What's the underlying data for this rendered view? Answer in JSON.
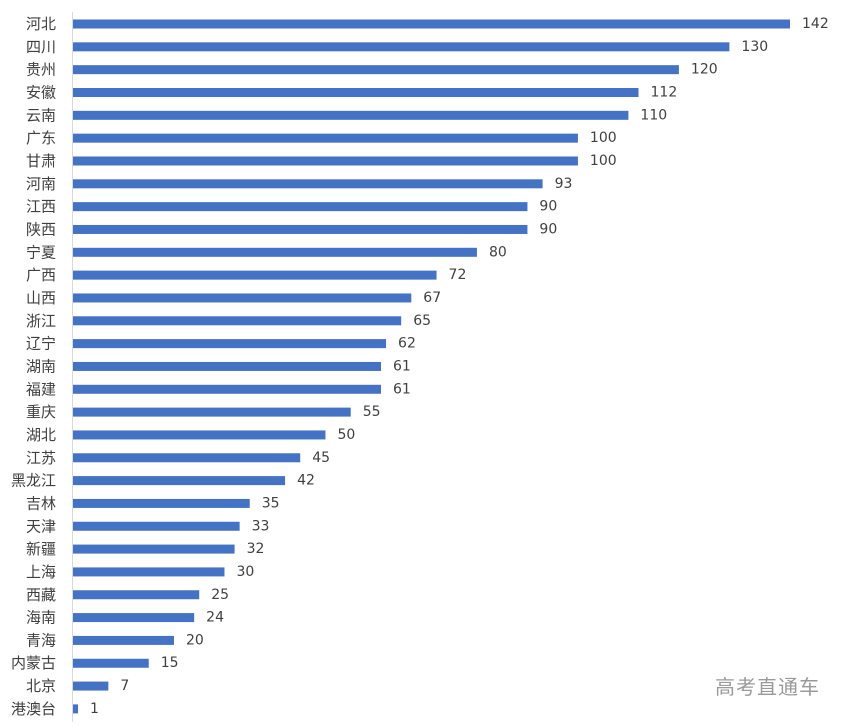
{
  "chart_data": {
    "type": "bar",
    "orientation": "horizontal",
    "categories": [
      "河北",
      "四川",
      "贵州",
      "安徽",
      "云南",
      "广东",
      "甘肃",
      "河南",
      "江西",
      "陕西",
      "宁夏",
      "广西",
      "山西",
      "浙江",
      "辽宁",
      "湖南",
      "福建",
      "重庆",
      "湖北",
      "江苏",
      "黑龙江",
      "吉林",
      "天津",
      "新疆",
      "上海",
      "西藏",
      "海南",
      "青海",
      "内蒙古",
      "北京",
      "港澳台"
    ],
    "values": [
      142,
      130,
      120,
      112,
      110,
      100,
      100,
      93,
      90,
      90,
      80,
      72,
      67,
      65,
      62,
      61,
      61,
      55,
      50,
      45,
      42,
      35,
      33,
      32,
      30,
      25,
      24,
      20,
      15,
      7,
      1
    ],
    "bar_color": "#4472c4",
    "data_labels": true,
    "xlim": [
      0,
      142
    ],
    "grid": false
  },
  "watermark": "高考直通车"
}
